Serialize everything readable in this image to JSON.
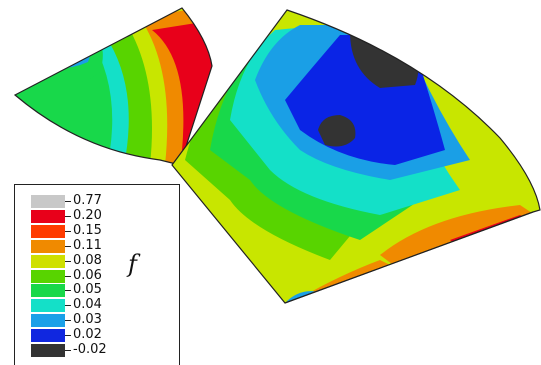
{
  "legend": {
    "symbol": "f",
    "entries": [
      {
        "label": "0.77",
        "color": "#c8c8c8"
      },
      {
        "label": "0.20",
        "color": "#e8001a"
      },
      {
        "label": "0.15",
        "color": "#ff3b00"
      },
      {
        "label": "0.11",
        "color": "#f08a00"
      },
      {
        "label": "0.08",
        "color": "#cfe000"
      },
      {
        "label": "0.06",
        "color": "#58d400"
      },
      {
        "label": "0.05",
        "color": "#18d84a"
      },
      {
        "label": "0.04",
        "color": "#14e0c8"
      },
      {
        "label": "0.03",
        "color": "#1aa0e8"
      },
      {
        "label": "0.02",
        "color": "#1027e0"
      },
      {
        "label": "-0.02",
        "color": "#333333"
      }
    ]
  },
  "colors": {
    "dark": "#333333",
    "blue": "#0a24e6",
    "light_blue": "#1a9fe6",
    "cyan": "#14e0c8",
    "green": "#18d84a",
    "lime": "#58d400",
    "yellow_green": "#c8e600",
    "orange": "#f08a00",
    "red": "#e8001a",
    "outline": "#222222"
  }
}
